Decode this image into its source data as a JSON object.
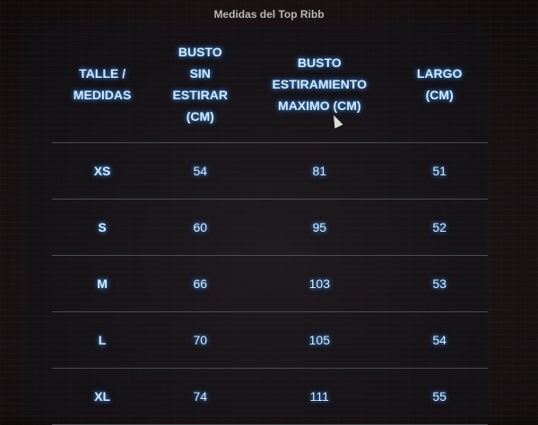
{
  "title": "Medidas del Top Ribb",
  "table": {
    "headers": [
      [
        "TALLE /",
        "MEDIDAS"
      ],
      [
        "BUSTO",
        "SIN",
        "ESTIRAR",
        "(CM)"
      ],
      [
        "BUSTO",
        "ESTIRAMIENTO",
        "MAXIMO (CM)"
      ],
      [
        "LARGO",
        "(CM)"
      ]
    ],
    "rows": [
      [
        "XS",
        "54",
        "81",
        "51"
      ],
      [
        "S",
        "60",
        "95",
        "52"
      ],
      [
        "M",
        "66",
        "103",
        "53"
      ],
      [
        "L",
        "70",
        "105",
        "54"
      ],
      [
        "XL",
        "74",
        "111",
        "55"
      ]
    ]
  },
  "icons": {
    "cursor": "mouse-pointer-icon"
  }
}
